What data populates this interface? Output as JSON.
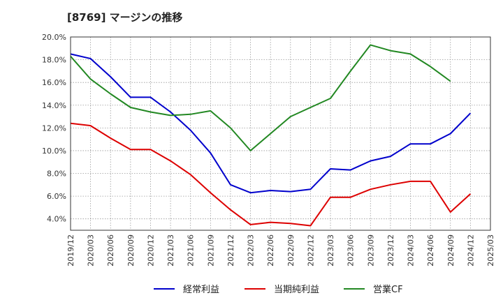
{
  "chart_data": {
    "type": "line",
    "title": "[8769]  マージンの推移",
    "xlabel": "",
    "ylabel": "",
    "x": [
      "2019/12",
      "2020/03",
      "2020/06",
      "2020/09",
      "2020/12",
      "2021/03",
      "2021/06",
      "2021/09",
      "2021/12",
      "2022/03",
      "2022/06",
      "2022/09",
      "2022/12",
      "2023/03",
      "2023/06",
      "2023/09",
      "2023/12",
      "2024/03",
      "2024/06",
      "2024/09",
      "2024/12",
      "2025/03"
    ],
    "y_ticks": [
      "4.0%",
      "6.0%",
      "8.0%",
      "10.0%",
      "12.0%",
      "14.0%",
      "16.0%",
      "18.0%",
      "20.0%"
    ],
    "ylim": [
      3.0,
      20.0
    ],
    "grid": true,
    "legend_position": "bottom",
    "series": [
      {
        "name": "経常利益",
        "color": "#0000cc",
        "values": [
          18.5,
          18.1,
          16.5,
          14.7,
          14.7,
          13.4,
          11.8,
          9.8,
          7.0,
          6.3,
          6.5,
          6.4,
          6.6,
          8.4,
          8.3,
          9.1,
          9.5,
          10.6,
          10.6,
          11.5,
          13.3,
          null
        ]
      },
      {
        "name": "当期純利益",
        "color": "#dd0000",
        "values": [
          12.4,
          12.2,
          11.1,
          10.1,
          10.1,
          9.1,
          7.9,
          6.3,
          4.8,
          3.5,
          3.7,
          3.6,
          3.4,
          5.9,
          5.9,
          6.6,
          7.0,
          7.3,
          7.3,
          4.6,
          6.2,
          null
        ]
      },
      {
        "name": "営業CF",
        "color": "#228822",
        "values": [
          18.3,
          16.3,
          15.0,
          13.8,
          13.4,
          13.1,
          13.2,
          13.5,
          12.0,
          10.0,
          11.5,
          13.0,
          13.8,
          14.6,
          17.0,
          19.3,
          18.8,
          18.5,
          17.4,
          16.1,
          null,
          null
        ]
      }
    ]
  }
}
